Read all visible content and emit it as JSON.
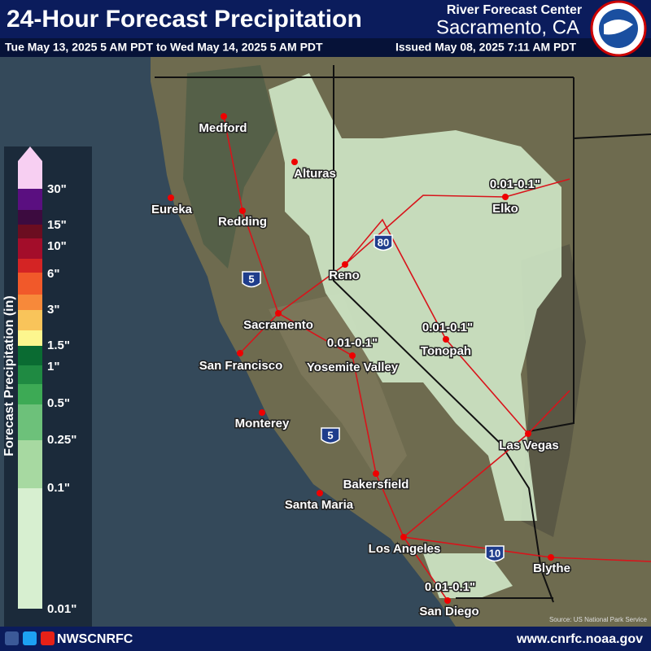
{
  "header": {
    "title": "24-Hour Forecast Precipitation",
    "center": "River Forecast Center",
    "location": "Sacramento, CA",
    "period": "Tue May 13, 2025 5 AM PDT to Wed May 14, 2025 5 AM PDT",
    "issued": "Issued May 08, 2025 7:11 AM PDT"
  },
  "legend": {
    "title": "Forecast Precipitation (in)",
    "labels": [
      "30\"",
      "15\"",
      "10\"",
      "6\"",
      "3\"",
      "1.5\"",
      "1\"",
      "0.5\"",
      "0.25\"",
      "0.1\"",
      "0.01\""
    ]
  },
  "cities": [
    "Medford",
    "Eureka",
    "Redding",
    "Alturas",
    "Reno",
    "Sacramento",
    "San Francisco",
    "Monterey",
    "Yosemite Valley",
    "Tonopah",
    "Elko",
    "Las Vegas",
    "Bakersfield",
    "Santa Maria",
    "Los Angeles",
    "Blythe",
    "San Diego"
  ],
  "annotations": [
    "0.01-0.1\"",
    "0.01-0.1\"",
    "0.01-0.1\"",
    "0.01-0.1\""
  ],
  "highways": [
    "80",
    "5",
    "5",
    "10"
  ],
  "source": "Source: US National Park Service",
  "footer": {
    "handle": "NWSCNRFC",
    "url": "www.cnrfc.noaa.gov"
  }
}
